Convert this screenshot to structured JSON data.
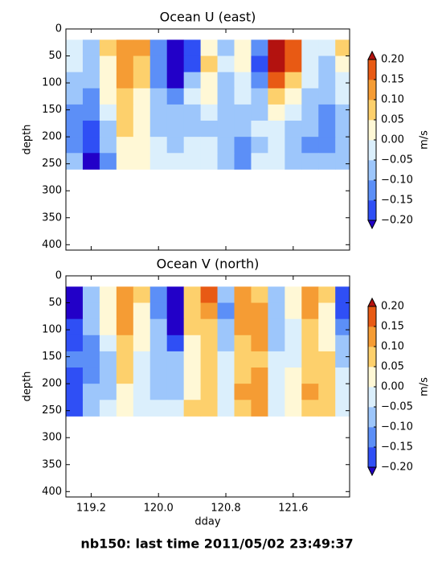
{
  "suptitle": "nb150: last time 2011/05/02 23:49:37",
  "chart_data": [
    {
      "type": "contour",
      "title": "Ocean U (east)",
      "ylabel": "depth",
      "colorbar_label": "m/s",
      "xlim": [
        118.9,
        122.27
      ],
      "xticks": [
        119.2,
        120,
        120.8,
        121.6
      ],
      "ylim": [
        0,
        410
      ],
      "y_inverted": true,
      "yticks": [
        0,
        50,
        100,
        150,
        200,
        250,
        300,
        350,
        400
      ],
      "x": [
        119.0,
        119.2,
        119.4,
        119.6,
        119.8,
        120.0,
        120.2,
        120.4,
        120.6,
        120.8,
        121.0,
        121.2,
        121.4,
        121.6,
        121.8,
        122.0,
        122.2
      ],
      "y": [
        35,
        65,
        95,
        125,
        155,
        185,
        215,
        245
      ],
      "z": [
        [
          -0.05,
          -0.08,
          0.05,
          0.12,
          0.1,
          -0.12,
          -0.22,
          -0.18,
          0.03,
          -0.06,
          0.02,
          -0.15,
          0.22,
          0.18,
          -0.03,
          -0.05,
          0.07
        ],
        [
          -0.04,
          -0.1,
          0.03,
          0.13,
          0.08,
          -0.15,
          -0.23,
          -0.16,
          0.05,
          -0.04,
          0.0,
          -0.17,
          0.21,
          0.16,
          -0.02,
          -0.06,
          0.02
        ],
        [
          -0.06,
          -0.09,
          0.02,
          0.14,
          0.06,
          -0.12,
          -0.21,
          -0.08,
          0.04,
          -0.07,
          -0.03,
          -0.14,
          0.17,
          0.09,
          -0.04,
          -0.08,
          -0.02
        ],
        [
          -0.08,
          -0.12,
          0.0,
          0.09,
          0.04,
          -0.1,
          -0.14,
          -0.04,
          0.02,
          -0.08,
          -0.04,
          -0.1,
          0.08,
          0.03,
          -0.06,
          -0.1,
          -0.04
        ],
        [
          -0.12,
          -0.14,
          -0.03,
          0.06,
          0.03,
          -0.08,
          -0.1,
          -0.06,
          -0.03,
          -0.09,
          -0.07,
          -0.06,
          0.02,
          -0.03,
          -0.09,
          -0.12,
          -0.07
        ],
        [
          -0.14,
          -0.16,
          -0.06,
          0.07,
          0.02,
          -0.06,
          -0.07,
          -0.08,
          -0.06,
          -0.1,
          -0.09,
          -0.05,
          -0.02,
          -0.06,
          -0.1,
          -0.13,
          -0.09
        ],
        [
          -0.13,
          -0.18,
          -0.09,
          0.04,
          0.02,
          -0.04,
          -0.06,
          -0.05,
          -0.05,
          -0.08,
          -0.11,
          -0.06,
          -0.04,
          -0.07,
          -0.11,
          -0.12,
          -0.08
        ],
        [
          -0.1,
          -0.21,
          -0.11,
          0.02,
          0.03,
          -0.03,
          -0.04,
          -0.03,
          -0.04,
          -0.06,
          -0.13,
          -0.05,
          -0.05,
          -0.06,
          -0.09,
          -0.1,
          -0.06
        ]
      ],
      "levels": [
        {
          "value": -0.2,
          "label": "−0.20"
        },
        {
          "value": -0.15,
          "label": "−0.15"
        },
        {
          "value": -0.1,
          "label": "−0.10"
        },
        {
          "value": -0.05,
          "label": "−0.05"
        },
        {
          "value": 0,
          "label": "0.00"
        },
        {
          "value": 0.05,
          "label": "0.05"
        },
        {
          "value": 0.1,
          "label": "0.10"
        },
        {
          "value": 0.15,
          "label": "0.15"
        },
        {
          "value": 0.2,
          "label": "0.20"
        }
      ],
      "colors": [
        "#2f4ff5",
        "#5c8ff7",
        "#9dc6fb",
        "#dbeffc",
        "#fff8d6",
        "#fdd06c",
        "#f59c34",
        "#e85a14"
      ],
      "under_color": "#2200c8",
      "over_color": "#b3120f"
    },
    {
      "type": "contour",
      "title": "Ocean V (north)",
      "xlabel": "dday",
      "ylabel": "depth",
      "colorbar_label": "m/s",
      "xlim": [
        118.9,
        122.27
      ],
      "xticks": [
        {
          "value": 119.2,
          "label": "119.2"
        },
        {
          "value": 120,
          "label": "120.0"
        },
        {
          "value": 120.8,
          "label": "120.8"
        },
        {
          "value": 121.6,
          "label": "121.6"
        }
      ],
      "ylim": [
        0,
        410
      ],
      "y_inverted": true,
      "yticks": [
        0,
        50,
        100,
        150,
        200,
        250,
        300,
        350,
        400
      ],
      "x": [
        119.0,
        119.2,
        119.4,
        119.6,
        119.8,
        120.0,
        120.2,
        120.4,
        120.6,
        120.8,
        121.0,
        121.2,
        121.4,
        121.6,
        121.8,
        122.0,
        122.2
      ],
      "y": [
        35,
        65,
        95,
        125,
        155,
        185,
        215,
        245
      ],
      "z": [
        [
          -0.22,
          -0.06,
          0.03,
          0.12,
          0.06,
          -0.12,
          -0.22,
          0.08,
          0.18,
          -0.1,
          0.14,
          0.08,
          -0.08,
          0.02,
          0.12,
          0.06,
          -0.16
        ],
        [
          -0.21,
          -0.08,
          0.02,
          0.11,
          0.04,
          -0.13,
          -0.23,
          0.07,
          0.12,
          -0.12,
          0.13,
          0.1,
          -0.1,
          0.0,
          0.1,
          0.04,
          -0.18
        ],
        [
          -0.18,
          -0.1,
          0.0,
          0.1,
          0.02,
          -0.1,
          -0.22,
          0.05,
          0.09,
          -0.1,
          0.11,
          0.11,
          -0.08,
          -0.02,
          0.09,
          0.03,
          -0.12
        ],
        [
          -0.16,
          -0.12,
          -0.04,
          0.07,
          0.0,
          -0.1,
          -0.2,
          0.03,
          0.06,
          -0.07,
          0.09,
          0.1,
          -0.06,
          -0.03,
          0.08,
          0.04,
          -0.08
        ],
        [
          -0.15,
          -0.12,
          -0.06,
          0.06,
          -0.02,
          -0.09,
          -0.1,
          0.02,
          0.05,
          -0.05,
          0.08,
          0.09,
          -0.05,
          -0.02,
          0.08,
          0.05,
          -0.06
        ],
        [
          -0.17,
          -0.11,
          -0.07,
          0.05,
          -0.04,
          -0.08,
          -0.07,
          0.03,
          0.06,
          -0.04,
          0.09,
          0.1,
          -0.04,
          0.0,
          0.09,
          0.06,
          -0.05
        ],
        [
          -0.19,
          -0.09,
          -0.06,
          0.04,
          -0.05,
          -0.07,
          -0.06,
          0.04,
          0.07,
          -0.03,
          0.1,
          0.12,
          -0.03,
          0.02,
          0.1,
          0.08,
          -0.04
        ],
        [
          -0.17,
          -0.07,
          -0.05,
          0.03,
          -0.03,
          -0.05,
          -0.04,
          0.05,
          0.06,
          -0.02,
          0.09,
          0.11,
          -0.02,
          0.03,
          0.08,
          0.09,
          -0.03
        ]
      ],
      "levels": [
        {
          "value": -0.2,
          "label": "−0.20"
        },
        {
          "value": -0.15,
          "label": "−0.15"
        },
        {
          "value": -0.1,
          "label": "−0.10"
        },
        {
          "value": -0.05,
          "label": "−0.05"
        },
        {
          "value": 0,
          "label": "0.00"
        },
        {
          "value": 0.05,
          "label": "0.05"
        },
        {
          "value": 0.1,
          "label": "0.10"
        },
        {
          "value": 0.15,
          "label": "0.15"
        },
        {
          "value": 0.2,
          "label": "0.20"
        }
      ],
      "colors": [
        "#2f4ff5",
        "#5c8ff7",
        "#9dc6fb",
        "#dbeffc",
        "#fff8d6",
        "#fdd06c",
        "#f59c34",
        "#e85a14"
      ],
      "under_color": "#2200c8",
      "over_color": "#b3120f"
    }
  ]
}
